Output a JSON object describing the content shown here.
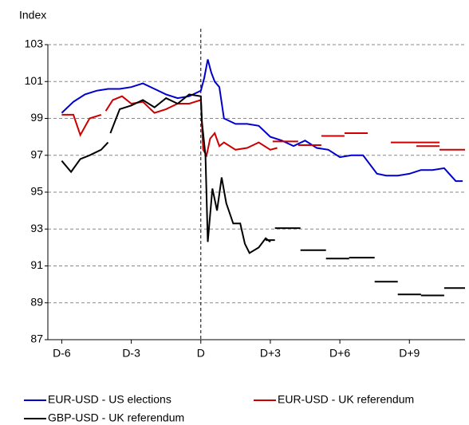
{
  "chart_data": {
    "type": "line",
    "y_label": "Index",
    "ylim": [
      87,
      103
    ],
    "yticks": [
      87,
      89,
      91,
      93,
      95,
      97,
      99,
      101,
      103
    ],
    "xlim": [
      -6.6,
      11.4
    ],
    "xticks": [
      {
        "value": -6,
        "label": "D-6"
      },
      {
        "value": -3,
        "label": "D-3"
      },
      {
        "value": 0,
        "label": "D"
      },
      {
        "value": 3,
        "label": "D+3"
      },
      {
        "value": 6,
        "label": "D+6"
      },
      {
        "value": 9,
        "label": "D+9"
      }
    ],
    "grid": true,
    "series": [
      {
        "name": "EUR-USD - US elections",
        "color": "#0000cc",
        "x": [
          -6,
          -5.5,
          -5,
          -4.5,
          -4,
          -3.5,
          -3,
          -2.5,
          -2,
          -1.5,
          -1,
          -0.5,
          0,
          0.15,
          0.3,
          0.45,
          0.6,
          0.8,
          1,
          1.5,
          2,
          2.5,
          3,
          3.5,
          4,
          4.5,
          5,
          5.5,
          6,
          6.5,
          7,
          7.3,
          7.6,
          8,
          8.5,
          9,
          9.5,
          10,
          10.5,
          11,
          11.3
        ],
        "values": [
          99.3,
          99.9,
          100.3,
          100.5,
          100.6,
          100.6,
          100.7,
          100.9,
          100.6,
          100.3,
          100.1,
          100.2,
          100.5,
          101.2,
          102.2,
          101.5,
          101.0,
          100.7,
          99.0,
          98.7,
          98.7,
          98.6,
          98.0,
          97.8,
          97.5,
          97.8,
          97.4,
          97.3,
          96.9,
          97.0,
          97.0,
          96.5,
          96.0,
          95.9,
          95.9,
          96.0,
          96.2,
          96.2,
          96.3,
          95.6,
          95.6
        ]
      },
      {
        "name": "EUR-USD - UK referendum",
        "color": "#cc0000",
        "x": [
          -6,
          -5.5,
          -5.2,
          -4.8,
          -4.3,
          null,
          -4.1,
          -3.8,
          -3.4,
          -3,
          -2.5,
          -2,
          -1.5,
          -1,
          -0.5,
          0,
          0.1,
          0.25,
          0.4,
          0.6,
          0.8,
          1,
          1.5,
          2,
          2.5,
          3,
          3.3,
          null,
          3.1,
          4.2,
          null,
          4.2,
          5.2,
          null,
          5.2,
          6.2,
          null,
          6.2,
          7.2,
          null,
          8.2,
          10.3,
          null,
          9.3,
          10.3,
          null,
          10.3,
          11.4
        ],
        "values": [
          99.2,
          99.2,
          98.1,
          99.0,
          99.2,
          null,
          99.4,
          100.0,
          100.2,
          99.8,
          99.9,
          99.3,
          99.5,
          99.8,
          99.8,
          100.0,
          97.3,
          97.0,
          97.9,
          98.2,
          97.5,
          97.7,
          97.3,
          97.4,
          97.7,
          97.3,
          97.4,
          null,
          97.75,
          97.75,
          null,
          97.55,
          97.55,
          null,
          98.05,
          98.05,
          null,
          98.2,
          98.2,
          null,
          97.7,
          97.7,
          null,
          97.5,
          97.5,
          null,
          97.3,
          97.3
        ]
      },
      {
        "name": "GBP-USD - UK referendum",
        "color": "#000000",
        "x": [
          -6,
          -5.6,
          -5.2,
          -4.8,
          -4.3,
          -4,
          null,
          -3.9,
          -3.5,
          -3,
          -2.5,
          -2,
          -1.5,
          -1,
          -0.5,
          0,
          0.05,
          0.2,
          0.3,
          0.5,
          0.7,
          0.9,
          1.1,
          1.4,
          1.7,
          1.9,
          2.1,
          2.5,
          2.8,
          3.0,
          null,
          2.8,
          3.2,
          null,
          3.2,
          4.3,
          null,
          4.3,
          5.4,
          null,
          5.4,
          6.4,
          null,
          6.4,
          7.5,
          null,
          7.5,
          8.5,
          null,
          8.5,
          9.5,
          null,
          9.5,
          10.5,
          null,
          10.5,
          11.4
        ],
        "values": [
          96.7,
          96.1,
          96.8,
          97.0,
          97.3,
          97.7,
          null,
          98.2,
          99.5,
          99.7,
          100.0,
          99.6,
          100.1,
          99.8,
          100.3,
          100.2,
          98.8,
          97.0,
          92.3,
          95.2,
          94.0,
          95.8,
          94.4,
          93.3,
          93.3,
          92.2,
          91.7,
          92.0,
          92.5,
          92.3,
          null,
          92.4,
          92.4,
          null,
          93.05,
          93.05,
          null,
          91.85,
          91.85,
          null,
          91.4,
          91.4,
          null,
          91.45,
          91.45,
          null,
          90.15,
          90.15,
          null,
          89.45,
          89.45,
          null,
          89.4,
          89.4,
          null,
          89.8,
          89.8
        ]
      }
    ]
  }
}
